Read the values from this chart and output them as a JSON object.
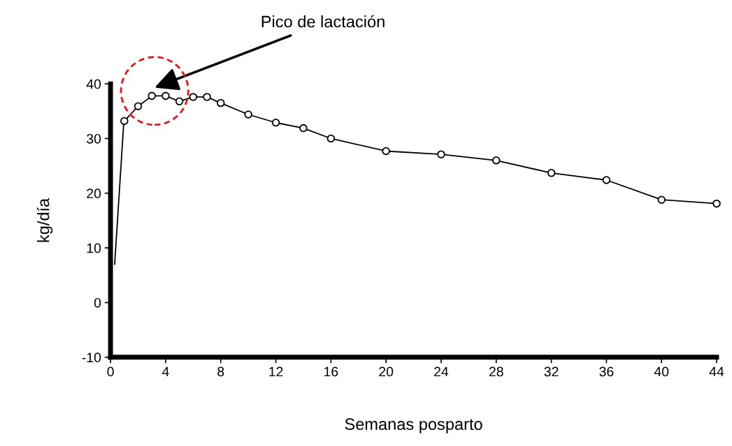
{
  "chart_data": {
    "type": "line",
    "xlabel": "Semanas posparto",
    "ylabel": "kg/día",
    "annotations": [
      "Pico de lactación"
    ],
    "xlim": [
      0,
      44
    ],
    "xticks": [
      0,
      4,
      8,
      12,
      16,
      20,
      24,
      28,
      32,
      36,
      40,
      44
    ],
    "ylim": [
      -10,
      40
    ],
    "yticks": [
      -10,
      0,
      10,
      20,
      30,
      40
    ],
    "grid": false,
    "marker": "circle",
    "line_style": "solid",
    "series": [
      {
        "color": "#000000",
        "type": "line",
        "marker": "none",
        "x": [
          0.3,
          0.95
        ],
        "values": [
          7,
          32.5
        ]
      },
      {
        "color": "#000000",
        "x": [
          1,
          2,
          3,
          4,
          5,
          6,
          7,
          8,
          10,
          12,
          14,
          16,
          20,
          24,
          28,
          32,
          36,
          40,
          44
        ],
        "values": [
          33.2,
          35.9,
          37.8,
          37.8,
          36.8,
          37.6,
          37.6,
          36.5,
          34.4,
          32.9,
          31.9,
          30.0,
          27.7,
          27.1,
          26.0,
          23.7,
          22.4,
          18.8,
          18.1
        ]
      }
    ]
  }
}
